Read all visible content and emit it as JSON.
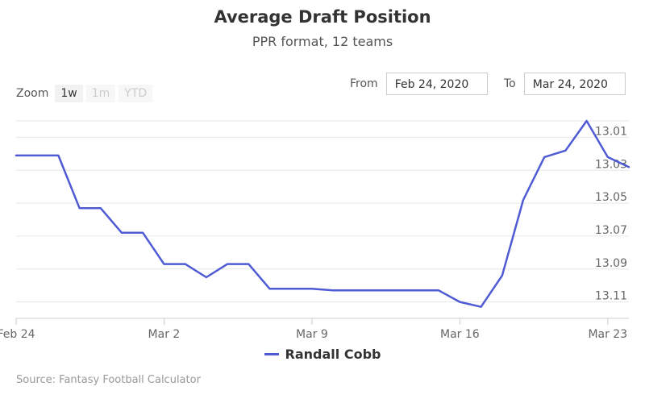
{
  "chart_data": {
    "type": "line",
    "title": "Average Draft Position",
    "subtitle": "PPR format, 12 teams",
    "y_reversed": true,
    "ylim": [
      13.0,
      13.12
    ],
    "y_ticks": [
      "13.01",
      "13.03",
      "13.05",
      "13.07",
      "13.09",
      "13.11"
    ],
    "y_tick_values": [
      13.01,
      13.03,
      13.05,
      13.07,
      13.09,
      13.11
    ],
    "x_range": [
      "2020-02-24",
      "2020-03-24"
    ],
    "x_ticks": [
      {
        "label": "Feb 24",
        "date": "2020-02-24"
      },
      {
        "label": "Mar 2",
        "date": "2020-03-02"
      },
      {
        "label": "Mar 9",
        "date": "2020-03-09"
      },
      {
        "label": "Mar 16",
        "date": "2020-03-16"
      },
      {
        "label": "Mar 23",
        "date": "2020-03-23"
      }
    ],
    "grid": true,
    "legend_position": "bottom",
    "series": [
      {
        "name": "Randall Cobb",
        "color": "#4f5bd5",
        "points": [
          {
            "x": "2020-02-24",
            "y": 13.021
          },
          {
            "x": "2020-02-26",
            "y": 13.021
          },
          {
            "x": "2020-02-27",
            "y": 13.053
          },
          {
            "x": "2020-02-28",
            "y": 13.053
          },
          {
            "x": "2020-02-29",
            "y": 13.068
          },
          {
            "x": "2020-03-01",
            "y": 13.068
          },
          {
            "x": "2020-03-02",
            "y": 13.087
          },
          {
            "x": "2020-03-03",
            "y": 13.087
          },
          {
            "x": "2020-03-04",
            "y": 13.095
          },
          {
            "x": "2020-03-05",
            "y": 13.087
          },
          {
            "x": "2020-03-06",
            "y": 13.087
          },
          {
            "x": "2020-03-07",
            "y": 13.102
          },
          {
            "x": "2020-03-09",
            "y": 13.102
          },
          {
            "x": "2020-03-10",
            "y": 13.103
          },
          {
            "x": "2020-03-15",
            "y": 13.103
          },
          {
            "x": "2020-03-16",
            "y": 13.11
          },
          {
            "x": "2020-03-17",
            "y": 13.113
          },
          {
            "x": "2020-03-18",
            "y": 13.094
          },
          {
            "x": "2020-03-19",
            "y": 13.048
          },
          {
            "x": "2020-03-20",
            "y": 13.022
          },
          {
            "x": "2020-03-21",
            "y": 13.018
          },
          {
            "x": "2020-03-22",
            "y": 13.0
          },
          {
            "x": "2020-03-23",
            "y": 13.022
          },
          {
            "x": "2020-03-24",
            "y": 13.028
          }
        ]
      }
    ]
  },
  "controls": {
    "zoom_label": "Zoom",
    "zoom_buttons": [
      "1w",
      "1m",
      "YTD"
    ],
    "from_label": "From",
    "from_value": "Feb 24, 2020",
    "to_label": "To",
    "to_value": "Mar 24, 2020"
  },
  "legend": {
    "label": "Randall Cobb",
    "color": "#4f5bd5"
  },
  "source": "Source: Fantasy Football Calculator"
}
